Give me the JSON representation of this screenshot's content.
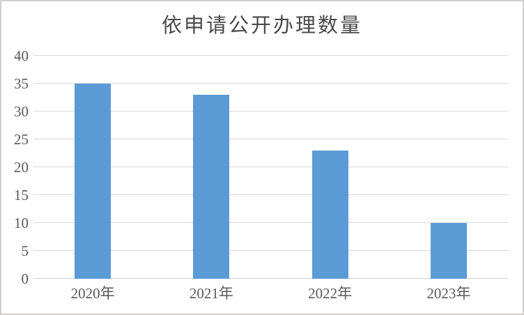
{
  "window": {
    "background": "#FFFFFF",
    "border_color": "#D0CECE"
  },
  "chart_data": {
    "type": "bar",
    "title": "依申请公开办理数量",
    "categories": [
      "2020年",
      "2021年",
      "2022年",
      "2023年"
    ],
    "values": [
      35,
      33,
      23,
      10
    ],
    "xlabel": "",
    "ylabel": "",
    "ylim": [
      0,
      40
    ],
    "yticks": [
      0,
      5,
      10,
      15,
      20,
      25,
      30,
      35,
      40
    ],
    "grid": true,
    "legend": false,
    "colors": {
      "bar": "#5B9BD5",
      "gridline": "#D9D9D9",
      "axis_line": "#D2D2D2",
      "tick_text": "#595959",
      "title_text": "#4A4A4A"
    }
  }
}
